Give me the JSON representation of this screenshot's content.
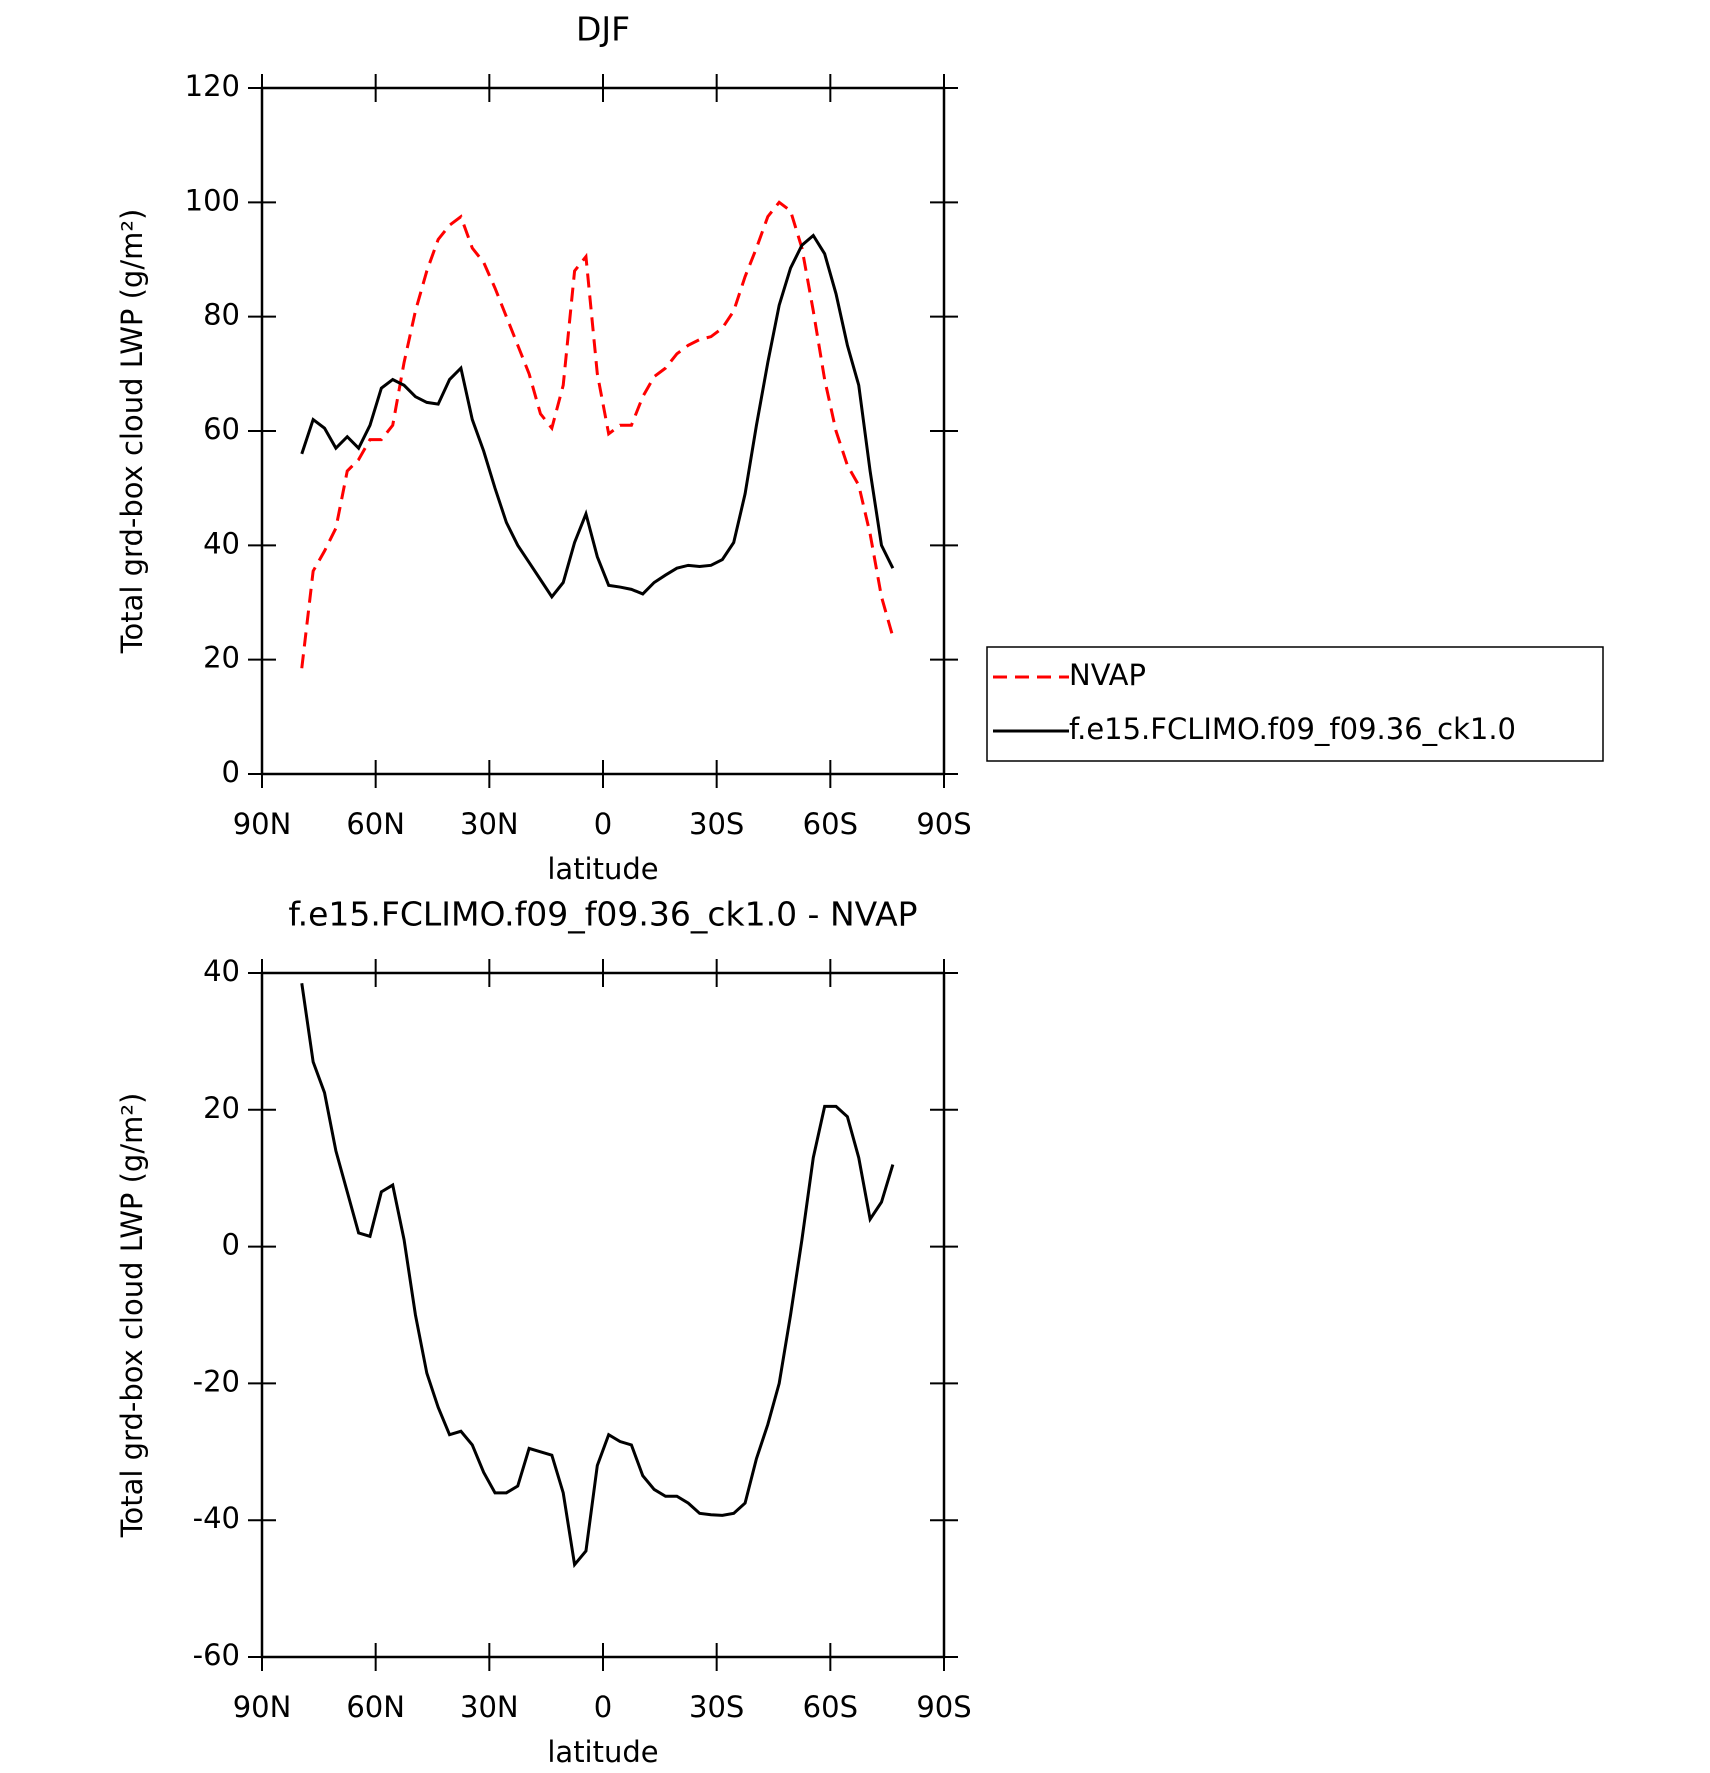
{
  "chart_data": [
    {
      "type": "line",
      "title": "DJF",
      "xlabel": "latitude",
      "ylabel": "Total grd-box cloud LWP (g/m²)",
      "x": [
        79.5,
        76.5,
        73.5,
        70.5,
        67.5,
        64.5,
        61.5,
        58.5,
        55.5,
        52.5,
        49.5,
        46.5,
        43.5,
        40.5,
        37.5,
        34.5,
        31.5,
        28.5,
        25.5,
        22.5,
        19.5,
        16.5,
        13.5,
        10.5,
        7.5,
        4.5,
        1.5,
        -1.5,
        -4.5,
        -7.5,
        -10.5,
        -13.5,
        -16.5,
        -19.5,
        -22.5,
        -25.5,
        -28.5,
        -31.5,
        -34.5,
        -37.5,
        -40.5,
        -43.5,
        -46.5,
        -49.5,
        -52.5,
        -55.5,
        -58.5,
        -61.5,
        -64.5,
        -67.5,
        -70.5,
        -73.5,
        -76.5
      ],
      "series": [
        {
          "name": "NVAP",
          "color": "#ff0000",
          "style": "dashed",
          "values": [
            18.5,
            35.5,
            39,
            43,
            53,
            55,
            58.5,
            58.5,
            61,
            72,
            81,
            88,
            93.5,
            96,
            97.5,
            92,
            89.5,
            85,
            80,
            75,
            70,
            63,
            60.5,
            68,
            88,
            90.5,
            70,
            59.5,
            61,
            61,
            66,
            69.5,
            71,
            73.5,
            75,
            76,
            76.5,
            78,
            81,
            87,
            92,
            97.5,
            100,
            98.5,
            92,
            81,
            69,
            60,
            54,
            50.5,
            42,
            31,
            24
          ]
        },
        {
          "name": "f.e15.FCLIMO.f09_f09.36_ck1.0",
          "color": "#000000",
          "style": "solid",
          "values": [
            56,
            62,
            60.5,
            57,
            59,
            57,
            61,
            67.5,
            69,
            68,
            66,
            65,
            64.7,
            69,
            71,
            62,
            56.5,
            50,
            44,
            40,
            37,
            34,
            31,
            33.5,
            40.5,
            45.5,
            38,
            33,
            32.7,
            32.3,
            31.5,
            33.5,
            34.8,
            36,
            36.5,
            36.3,
            36.5,
            37.5,
            40.5,
            49,
            61,
            72,
            82,
            88.5,
            92.5,
            94.2,
            91,
            84,
            75,
            68,
            53,
            40,
            36
          ]
        }
      ],
      "xlim": [
        90,
        -90
      ],
      "xticks": [
        {
          "value": 90,
          "label": "90N"
        },
        {
          "value": 60,
          "label": "60N"
        },
        {
          "value": 30,
          "label": "30N"
        },
        0,
        {
          "value": -30,
          "label": "30S"
        },
        {
          "value": -60,
          "label": "60S"
        },
        {
          "value": -90,
          "label": "90S"
        }
      ],
      "ylim": [
        0,
        120
      ],
      "yticks": [
        0,
        20,
        40,
        60,
        80,
        100,
        120
      ],
      "legend": "right"
    },
    {
      "type": "line",
      "title": "f.e15.FCLIMO.f09_f09.36_ck1.0 - NVAP",
      "xlabel": "latitude",
      "ylabel": "Total grd-box cloud LWP (g/m²)",
      "x": [
        79.5,
        76.5,
        73.5,
        70.5,
        67.5,
        64.5,
        61.5,
        58.5,
        55.5,
        52.5,
        49.5,
        46.5,
        43.5,
        40.5,
        37.5,
        34.5,
        31.5,
        28.5,
        25.5,
        22.5,
        19.5,
        16.5,
        13.5,
        10.5,
        7.5,
        4.5,
        1.5,
        -1.5,
        -4.5,
        -7.5,
        -10.5,
        -13.5,
        -16.5,
        -19.5,
        -22.5,
        -25.5,
        -28.5,
        -31.5,
        -34.5,
        -37.5,
        -40.5,
        -43.5,
        -46.5,
        -49.5,
        -52.5,
        -55.5,
        -58.5,
        -61.5,
        -64.5,
        -67.5,
        -70.5,
        -73.5,
        -76.5
      ],
      "series": [
        {
          "color": "#000000",
          "style": "solid",
          "values": [
            38.5,
            27,
            22.5,
            14,
            8,
            2,
            1.5,
            8,
            9,
            1,
            -10,
            -18.5,
            -23.5,
            -27.5,
            -27,
            -29,
            -33,
            -36,
            -36,
            -35,
            -29.5,
            -30,
            -30.5,
            -36,
            -46.5,
            -44.5,
            -32,
            -27.5,
            -28.5,
            -29,
            -33.5,
            -35.5,
            -36.5,
            -36.5,
            -37.5,
            -39,
            -39.2,
            -39.3,
            -39,
            -37.5,
            -31,
            -26,
            -20,
            -10,
            1,
            13,
            20.5,
            20.5,
            19,
            13,
            4,
            6.5,
            12
          ]
        }
      ],
      "xlim": [
        90,
        -90
      ],
      "xticks": [
        {
          "value": 90,
          "label": "90N"
        },
        {
          "value": 60,
          "label": "60N"
        },
        {
          "value": 30,
          "label": "30N"
        },
        0,
        {
          "value": -30,
          "label": "30S"
        },
        {
          "value": -60,
          "label": "60S"
        },
        {
          "value": -90,
          "label": "90S"
        }
      ],
      "ylim": [
        -60,
        40
      ],
      "yticks": [
        -60,
        -40,
        -20,
        0,
        20,
        40
      ]
    }
  ]
}
